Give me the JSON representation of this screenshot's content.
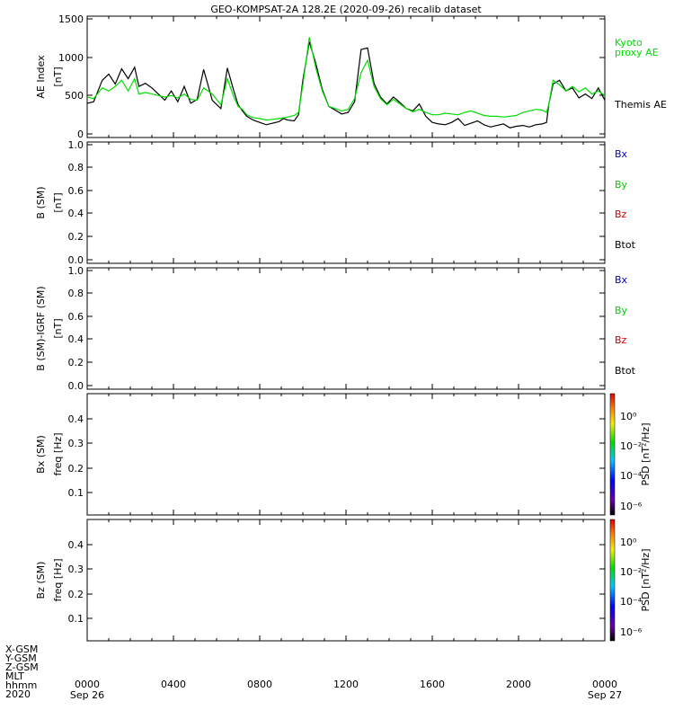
{
  "title": "GEO-KOMPSAT-2A 128.2E (2020-09-26) recalib dataset",
  "x_axis": {
    "ticks": [
      "0000",
      "0400",
      "0800",
      "1200",
      "1600",
      "2000",
      "0000"
    ],
    "tick_hours": [
      0,
      4,
      8,
      12,
      16,
      20,
      24
    ],
    "date_left": "Sep 26",
    "date_right": "Sep 27",
    "row_labels": [
      "X-GSM",
      "Y-GSM",
      "Z-GSM",
      "MLT",
      "hhmm",
      "2020"
    ]
  },
  "colorbar": {
    "label": "PSD [nT²/Hz]",
    "ticks": [
      "10⁰",
      "10⁻²",
      "10⁻⁴",
      "10⁻⁶"
    ]
  },
  "panels": [
    {
      "ylabel": [
        "AE Index",
        "[nT]"
      ],
      "yticks": [
        "0",
        "500",
        "1000",
        "1500"
      ],
      "legend": [
        {
          "text": "Kyoto",
          "color": "#00dd00"
        },
        {
          "text": "proxy AE",
          "color": "#00dd00"
        },
        {
          "text": "Themis AE",
          "color": "#000000"
        }
      ]
    },
    {
      "ylabel": [
        "B (SM)",
        "[nT]"
      ],
      "yticks": [
        "0.0",
        "0.2",
        "0.4",
        "0.6",
        "0.8",
        "1.0"
      ],
      "legend": [
        {
          "text": "Bx",
          "color": "#0000cc"
        },
        {
          "text": "By",
          "color": "#00cc00"
        },
        {
          "text": "Bz",
          "color": "#cc0000"
        },
        {
          "text": "Btot",
          "color": "#000000"
        }
      ]
    },
    {
      "ylabel": [
        "B (SM)-IGRF (SM)",
        "[nT]"
      ],
      "yticks": [
        "0.0",
        "0.2",
        "0.4",
        "0.6",
        "0.8",
        "1.0"
      ],
      "legend": [
        {
          "text": "Bx",
          "color": "#0000cc"
        },
        {
          "text": "By",
          "color": "#00cc00"
        },
        {
          "text": "Bz",
          "color": "#cc0000"
        },
        {
          "text": "Btot",
          "color": "#000000"
        }
      ]
    },
    {
      "ylabel": [
        "Bx (SM)",
        "freq [Hz]"
      ],
      "yticks": [
        "0.1",
        "0.2",
        "0.3",
        "0.4"
      ]
    },
    {
      "ylabel": [
        "Bz (SM)",
        "freq [Hz]"
      ],
      "yticks": [
        "0.1",
        "0.2",
        "0.3",
        "0.4"
      ]
    }
  ],
  "chart_data": [
    {
      "type": "line",
      "title": "GEO-KOMPSAT-2A 128.2E (2020-09-26) recalib dataset",
      "ylabel": "AE Index [nT]",
      "xlim_hours": [
        0,
        24
      ],
      "ylim": [
        0,
        1500
      ],
      "series": [
        {
          "name": "Themis AE",
          "color": "#000000",
          "x": [
            0,
            0.3,
            0.7,
            1.0,
            1.3,
            1.6,
            1.9,
            2.2,
            2.4,
            2.7,
            3.0,
            3.3,
            3.6,
            3.9,
            4.2,
            4.5,
            4.8,
            5.1,
            5.4,
            5.8,
            6.2,
            6.5,
            6.8,
            7.0,
            7.2,
            7.4,
            7.7,
            8.0,
            8.3,
            8.6,
            8.9,
            9.1,
            9.3,
            9.6,
            9.8,
            10.0,
            10.3,
            10.6,
            10.9,
            11.2,
            11.5,
            11.8,
            12.1,
            12.4,
            12.7,
            13.0,
            13.3,
            13.6,
            13.9,
            14.2,
            14.5,
            14.8,
            15.1,
            15.4,
            15.7,
            16.0,
            16.3,
            16.6,
            16.9,
            17.2,
            17.5,
            17.8,
            18.1,
            18.4,
            18.7,
            19.0,
            19.3,
            19.6,
            19.9,
            20.2,
            20.5,
            20.8,
            21.1,
            21.3,
            21.4,
            21.6,
            21.9,
            22.2,
            22.5,
            22.8,
            23.1,
            23.4,
            23.7,
            24.0
          ],
          "values": [
            400,
            420,
            700,
            780,
            650,
            850,
            720,
            870,
            620,
            660,
            600,
            520,
            440,
            560,
            420,
            620,
            400,
            450,
            840,
            440,
            330,
            860,
            560,
            380,
            300,
            230,
            180,
            150,
            120,
            140,
            160,
            200,
            180,
            170,
            250,
            700,
            1200,
            920,
            580,
            360,
            310,
            260,
            280,
            420,
            1100,
            1120,
            660,
            480,
            390,
            480,
            410,
            330,
            300,
            390,
            230,
            150,
            130,
            120,
            150,
            200,
            110,
            140,
            170,
            120,
            90,
            110,
            130,
            80,
            100,
            110,
            90,
            120,
            130,
            150,
            380,
            650,
            700,
            560,
            600,
            470,
            520,
            460,
            600,
            440
          ]
        },
        {
          "name": "Kyoto proxy AE",
          "color": "#00dd00",
          "x": [
            0,
            0.3,
            0.7,
            1.0,
            1.3,
            1.6,
            1.9,
            2.2,
            2.4,
            2.7,
            3.0,
            3.3,
            3.6,
            3.9,
            4.2,
            4.5,
            4.8,
            5.1,
            5.4,
            5.8,
            6.2,
            6.5,
            6.8,
            7.0,
            7.2,
            7.4,
            7.7,
            8.0,
            8.3,
            8.6,
            8.9,
            9.1,
            9.3,
            9.6,
            9.8,
            10.0,
            10.3,
            10.6,
            10.9,
            11.2,
            11.5,
            11.8,
            12.1,
            12.4,
            12.7,
            13.0,
            13.3,
            13.6,
            13.9,
            14.2,
            14.5,
            14.8,
            15.1,
            15.4,
            15.7,
            16.0,
            16.3,
            16.6,
            16.9,
            17.2,
            17.5,
            17.8,
            18.1,
            18.4,
            18.7,
            19.0,
            19.3,
            19.6,
            19.9,
            20.2,
            20.5,
            20.8,
            21.1,
            21.3,
            21.4,
            21.6,
            21.9,
            22.2,
            22.5,
            22.8,
            23.1,
            23.4,
            23.7,
            24.0
          ],
          "values": [
            480,
            460,
            600,
            560,
            620,
            700,
            560,
            720,
            520,
            540,
            520,
            500,
            480,
            500,
            470,
            520,
            450,
            440,
            600,
            520,
            380,
            720,
            480,
            360,
            320,
            250,
            210,
            200,
            180,
            190,
            200,
            210,
            220,
            240,
            280,
            640,
            1260,
            860,
            560,
            360,
            330,
            300,
            320,
            460,
            800,
            960,
            620,
            460,
            380,
            450,
            390,
            330,
            290,
            320,
            280,
            250,
            250,
            270,
            260,
            250,
            280,
            300,
            270,
            240,
            230,
            230,
            220,
            230,
            240,
            280,
            300,
            320,
            310,
            280,
            380,
            700,
            640,
            560,
            620,
            550,
            600,
            520,
            560,
            500
          ]
        }
      ]
    },
    {
      "type": "line",
      "ylabel": "B (SM) [nT]",
      "ylim": [
        0,
        1
      ],
      "series": []
    },
    {
      "type": "line",
      "ylabel": "B (SM)-IGRF (SM) [nT]",
      "ylim": [
        0,
        1
      ],
      "series": []
    },
    {
      "type": "heatmap",
      "ylabel": "Bx (SM) freq [Hz]",
      "ylim": [
        0,
        0.5
      ],
      "colorbar_label": "PSD [nT²/Hz]",
      "values": []
    },
    {
      "type": "heatmap",
      "ylabel": "Bz (SM) freq [Hz]",
      "ylim": [
        0,
        0.5
      ],
      "colorbar_label": "PSD [nT²/Hz]",
      "values": []
    }
  ]
}
